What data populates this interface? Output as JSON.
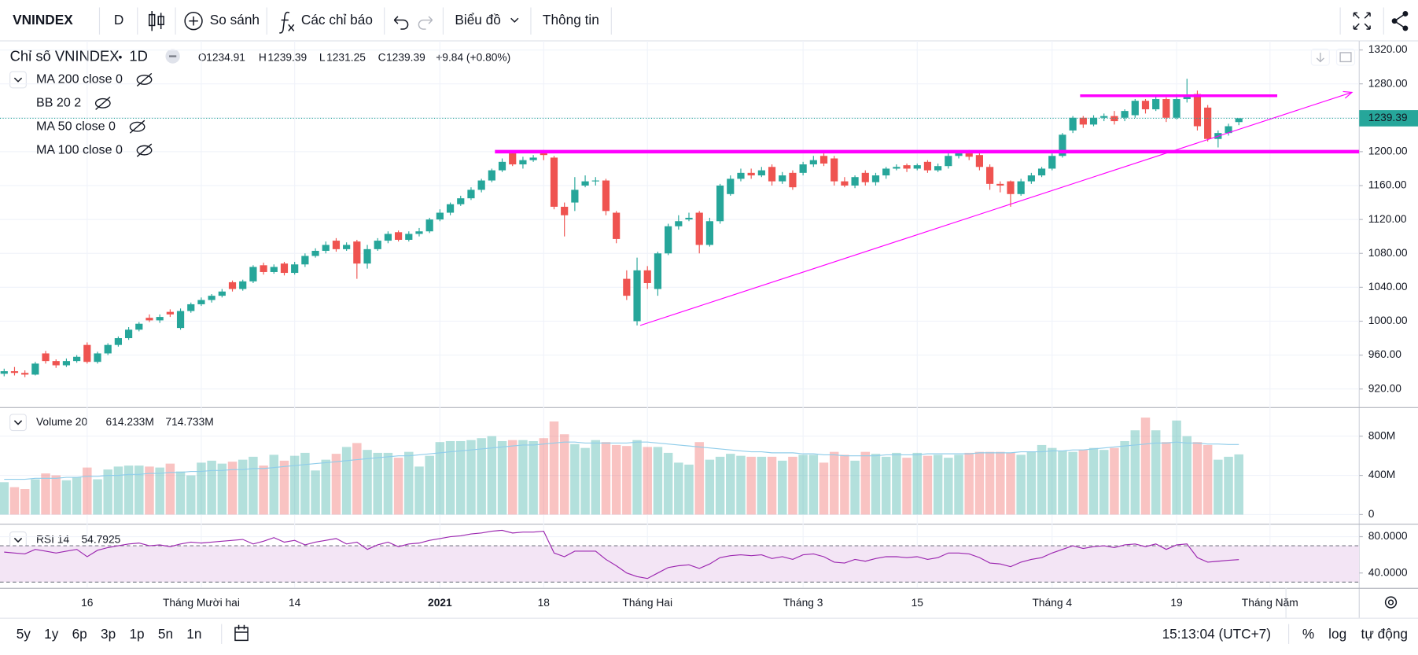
{
  "toolbar": {
    "symbol": "VNINDEX",
    "interval": "D",
    "compare": "So sánh",
    "indicators": "Các chỉ báo",
    "chart": "Biểu đồ",
    "info": "Thông tin"
  },
  "chart_data": {
    "type": "candlestick",
    "title": "Chỉ số VNINDEX",
    "interval": "1D",
    "legend_labels": [
      "O",
      "H",
      "L",
      "C"
    ],
    "change": "+9.84 (+0.80%)",
    "indicators": [
      "MA 200 close 0",
      "BB 20 2",
      "MA 50 close 0",
      "MA 100 close 0"
    ],
    "categories": [
      null,
      null,
      null,
      null,
      null,
      null,
      null,
      null,
      "16",
      null,
      null,
      null,
      null,
      null,
      null,
      null,
      null,
      null,
      null,
      "Tháng Mười hai",
      null,
      null,
      null,
      null,
      null,
      null,
      null,
      null,
      "14",
      null,
      null,
      null,
      null,
      null,
      null,
      null,
      null,
      null,
      null,
      null,
      null,
      null,
      "2021",
      null,
      null,
      null,
      null,
      null,
      null,
      null,
      null,
      null,
      "18",
      null,
      null,
      null,
      null,
      null,
      null,
      null,
      null,
      null,
      "Tháng Hai",
      null,
      null,
      null,
      null,
      null,
      null,
      null,
      null,
      null,
      null,
      null,
      null,
      null,
      null,
      "Tháng 3",
      null,
      null,
      null,
      null,
      null,
      null,
      null,
      null,
      null,
      null,
      "15",
      null,
      null,
      null,
      null,
      null,
      null,
      null,
      null,
      null,
      null,
      null,
      null,
      "Tháng 4",
      null,
      null,
      null,
      null,
      null,
      null,
      null,
      null,
      null,
      null,
      null,
      "19",
      null,
      null,
      null,
      null,
      null,
      null,
      null,
      null,
      "Tháng Năm"
    ],
    "open": [
      938,
      941,
      939,
      937,
      962,
      953,
      948,
      953,
      972,
      952,
      962,
      972,
      980,
      990,
      1004,
      1001,
      1011,
      992,
      1012,
      1020,
      1025,
      1030,
      1046,
      1038,
      1047,
      1066,
      1058,
      1068,
      1057,
      1067,
      1077,
      1083,
      1095,
      1085,
      1094,
      1068,
      1085,
      1095,
      1105,
      1096,
      1103,
      1106,
      1120,
      1128,
      1138,
      1145,
      1155,
      1166,
      1178,
      1198,
      1185,
      1190,
      1198,
      1193,
      1135,
      1140,
      1160,
      1165,
      1166,
      1128,
      1050,
      1000,
      1060,
      1038,
      1080,
      1112,
      1120,
      1128,
      1090,
      1118,
      1150,
      1168,
      1175,
      1172,
      1182,
      1165,
      1175,
      1175,
      1185,
      1195,
      1192,
      1165,
      1160,
      1175,
      1164,
      1172,
      1180,
      1184,
      1180,
      1188,
      1178,
      1183,
      1195,
      1198,
      1196,
      1182,
      1162,
      1165,
      1150,
      1165,
      1172,
      1180,
      1195,
      1225,
      1240,
      1232,
      1240,
      1242,
      1240,
      1243,
      1260,
      1250,
      1262,
      1240,
      1262,
      1268,
      1252,
      1215,
      1222,
      1234.91,
      null,
      null,
      null
    ],
    "high": [
      944,
      946,
      942,
      952,
      965,
      955,
      956,
      960,
      975,
      964,
      974,
      982,
      993,
      999,
      1008,
      1008,
      1014,
      1015,
      1022,
      1028,
      1032,
      1038,
      1048,
      1049,
      1066,
      1069,
      1067,
      1070,
      1070,
      1080,
      1086,
      1094,
      1098,
      1093,
      1096,
      1090,
      1098,
      1106,
      1107,
      1106,
      1110,
      1122,
      1132,
      1140,
      1148,
      1158,
      1168,
      1180,
      1192,
      1200,
      1194,
      1196,
      1202,
      1195,
      1140,
      1170,
      1172,
      1170,
      1168,
      1130,
      1060,
      1075,
      1065,
      1082,
      1115,
      1125,
      1128,
      1130,
      1122,
      1162,
      1172,
      1180,
      1180,
      1182,
      1185,
      1176,
      1178,
      1188,
      1195,
      1198,
      1195,
      1170,
      1172,
      1178,
      1175,
      1182,
      1185,
      1186,
      1186,
      1190,
      1186,
      1198,
      1200,
      1202,
      1199,
      1185,
      1165,
      1166,
      1168,
      1175,
      1182,
      1198,
      1222,
      1242,
      1242,
      1243,
      1245,
      1248,
      1250,
      1262,
      1262,
      1265,
      1264,
      1268,
      1286,
      1272,
      1255,
      1225,
      1233,
      1239.39,
      null,
      null,
      null
    ],
    "low": [
      935,
      936,
      934,
      936,
      950,
      945,
      946,
      951,
      950,
      950,
      960,
      970,
      978,
      988,
      999,
      998,
      1005,
      990,
      1010,
      1018,
      1022,
      1028,
      1035,
      1036,
      1045,
      1055,
      1056,
      1054,
      1055,
      1064,
      1075,
      1080,
      1082,
      1083,
      1050,
      1062,
      1083,
      1092,
      1094,
      1094,
      1100,
      1104,
      1118,
      1125,
      1136,
      1143,
      1152,
      1164,
      1176,
      1183,
      1180,
      1188,
      1190,
      1132,
      1100,
      1130,
      1158,
      1160,
      1125,
      1092,
      1025,
      995,
      1038,
      1030,
      1078,
      1108,
      1118,
      1080,
      1088,
      1115,
      1148,
      1165,
      1168,
      1170,
      1160,
      1162,
      1155,
      1172,
      1182,
      1183,
      1160,
      1158,
      1157,
      1160,
      1160,
      1168,
      1178,
      1176,
      1178,
      1175,
      1176,
      1180,
      1192,
      1190,
      1178,
      1155,
      1152,
      1135,
      1148,
      1162,
      1170,
      1178,
      1193,
      1222,
      1228,
      1230,
      1236,
      1232,
      1236,
      1240,
      1245,
      1248,
      1235,
      1238,
      1258,
      1225,
      1212,
      1205,
      1219,
      1231.25,
      null,
      null,
      null
    ],
    "close": [
      941,
      939,
      937,
      950,
      953,
      948,
      953,
      958,
      952,
      962,
      972,
      980,
      990,
      997,
      1001,
      1005,
      1008,
      1012,
      1020,
      1025,
      1030,
      1035,
      1038,
      1047,
      1064,
      1058,
      1064,
      1057,
      1067,
      1077,
      1083,
      1090,
      1085,
      1090,
      1068,
      1085,
      1095,
      1103,
      1096,
      1103,
      1106,
      1120,
      1128,
      1138,
      1145,
      1155,
      1166,
      1178,
      1188,
      1185,
      1190,
      1193,
      1196,
      1135,
      1125,
      1155,
      1165,
      1166,
      1130,
      1097,
      1030,
      1060,
      1045,
      1080,
      1112,
      1118,
      1122,
      1090,
      1118,
      1160,
      1168,
      1175,
      1172,
      1178,
      1165,
      1172,
      1158,
      1185,
      1190,
      1186,
      1165,
      1160,
      1170,
      1164,
      1172,
      1180,
      1182,
      1180,
      1184,
      1178,
      1183,
      1195,
      1198,
      1194,
      1182,
      1162,
      1160,
      1150,
      1165,
      1172,
      1180,
      1195,
      1220,
      1240,
      1232,
      1240,
      1242,
      1236,
      1248,
      1260,
      1250,
      1262,
      1240,
      1262,
      1265,
      1230,
      1215,
      1222,
      1230,
      1239.39,
      null,
      null,
      null
    ],
    "up_color": "#26a69a",
    "down_color": "#ef5350",
    "xlim": [
      -0.4,
      130.6
    ],
    "ylim": [
      898.7,
      1330.7
    ],
    "yticks": [
      {
        "value": 920,
        "label": "920.00"
      },
      {
        "value": 960,
        "label": "960.00"
      },
      {
        "value": 1000,
        "label": "1000.00"
      },
      {
        "value": 1040,
        "label": "1040.00"
      },
      {
        "value": 1080,
        "label": "1080.00"
      },
      {
        "value": 1120,
        "label": "1120.00"
      },
      {
        "value": 1160,
        "label": "1160.00"
      },
      {
        "value": 1200,
        "label": "1200.00"
      },
      {
        "value": 1240,
        "label": "1240.00"
      },
      {
        "value": 1280,
        "label": "1280.00"
      },
      {
        "value": 1320,
        "label": "1320.00"
      }
    ],
    "grid": true,
    "annotations": [
      {
        "start": [
          47.3,
          1200
        ],
        "end": [
          130.6,
          1200
        ],
        "color": "#ff00ff",
        "width": 4,
        "arrow": false
      },
      {
        "start": [
          103.7,
          1266
        ],
        "end": [
          122.7,
          1266
        ],
        "color": "#ff00ff",
        "width": 3,
        "arrow": false
      },
      {
        "start": [
          61.3,
          995
        ],
        "end": [
          129.9,
          1270
        ],
        "color": "#ff00ff",
        "width": 1,
        "arrow": true
      }
    ],
    "volume": {
      "title": "Volume 20",
      "legend": [
        "614.233M",
        "714.733M"
      ],
      "values": [
        330000000.0,
        280000000.0,
        260000000.0,
        360000000.0,
        420000000.0,
        400000000.0,
        350000000.0,
        380000000.0,
        480000000.0,
        360000000.0,
        460000000.0,
        490000000.0,
        500000000.0,
        500000000.0,
        490000000.0,
        480000000.0,
        520000000.0,
        440000000.0,
        400000000.0,
        530000000.0,
        550000000.0,
        520000000.0,
        540000000.0,
        560000000.0,
        590000000.0,
        500000000.0,
        610000000.0,
        550000000.0,
        600000000.0,
        630000000.0,
        450000000.0,
        560000000.0,
        620000000.0,
        690000000.0,
        730000000.0,
        660000000.0,
        630000000.0,
        630000000.0,
        580000000.0,
        640000000.0,
        490000000.0,
        600000000.0,
        740000000.0,
        750000000.0,
        750000000.0,
        760000000.0,
        780000000.0,
        800000000.0,
        750000000.0,
        760000000.0,
        760000000.0,
        750000000.0,
        780000000.0,
        950000000.0,
        820000000.0,
        720000000.0,
        680000000.0,
        760000000.0,
        740000000.0,
        710000000.0,
        700000000.0,
        760000000.0,
        690000000.0,
        690000000.0,
        630000000.0,
        530000000.0,
        510000000.0,
        740000000.0,
        560000000.0,
        590000000.0,
        620000000.0,
        600000000.0,
        590000000.0,
        590000000.0,
        590000000.0,
        550000000.0,
        590000000.0,
        610000000.0,
        610000000.0,
        530000000.0,
        640000000.0,
        610000000.0,
        550000000.0,
        640000000.0,
        620000000.0,
        590000000.0,
        630000000.0,
        580000000.0,
        630000000.0,
        600000000.0,
        610000000.0,
        580000000.0,
        610000000.0,
        630000000.0,
        640000000.0,
        640000000.0,
        640000000.0,
        630000000.0,
        610000000.0,
        640000000.0,
        710000000.0,
        680000000.0,
        650000000.0,
        640000000.0,
        660000000.0,
        680000000.0,
        660000000.0,
        680000000.0,
        750000000.0,
        860000000.0,
        990000000.0,
        860000000.0,
        740000000.0,
        960000000.0,
        800000000.0,
        740000000.0,
        710000000.0,
        560000000.0,
        590000000.0,
        614233000,
        null,
        null,
        null
      ],
      "ma": [
        360000000.0,
        360000000.0,
        360000000.0,
        370000000.0,
        370000000.0,
        370000000.0,
        380000000.0,
        380000000.0,
        390000000.0,
        390000000.0,
        400000000.0,
        400000000.0,
        410000000.0,
        410000000.0,
        420000000.0,
        420000000.0,
        430000000.0,
        430000000.0,
        440000000.0,
        440000000.0,
        450000000.0,
        450000000.0,
        460000000.0,
        460000000.0,
        470000000.0,
        470000000.0,
        480000000.0,
        490000000.0,
        500000000.0,
        510000000.0,
        520000000.0,
        530000000.0,
        540000000.0,
        550000000.0,
        560000000.0,
        570000000.0,
        580000000.0,
        590000000.0,
        600000000.0,
        600000000.0,
        610000000.0,
        620000000.0,
        630000000.0,
        640000000.0,
        650000000.0,
        660000000.0,
        670000000.0,
        680000000.0,
        690000000.0,
        700000000.0,
        710000000.0,
        710000000.0,
        720000000.0,
        730000000.0,
        740000000.0,
        740000000.0,
        730000000.0,
        730000000.0,
        730000000.0,
        730000000.0,
        730000000.0,
        740000000.0,
        740000000.0,
        730000000.0,
        720000000.0,
        710000000.0,
        700000000.0,
        690000000.0,
        680000000.0,
        670000000.0,
        660000000.0,
        650000000.0,
        640000000.0,
        640000000.0,
        630000000.0,
        630000000.0,
        630000000.0,
        620000000.0,
        620000000.0,
        610000000.0,
        610000000.0,
        600000000.0,
        600000000.0,
        600000000.0,
        600000000.0,
        610000000.0,
        610000000.0,
        610000000.0,
        610000000.0,
        620000000.0,
        620000000.0,
        620000000.0,
        620000000.0,
        620000000.0,
        630000000.0,
        630000000.0,
        630000000.0,
        630000000.0,
        640000000.0,
        640000000.0,
        640000000.0,
        650000000.0,
        650000000.0,
        660000000.0,
        660000000.0,
        670000000.0,
        680000000.0,
        690000000.0,
        700000000.0,
        710000000.0,
        720000000.0,
        730000000.0,
        730000000.0,
        740000000.0,
        730000000.0,
        730000000.0,
        720000000.0,
        720000000.0,
        715000000.0,
        714733000,
        null,
        null,
        null
      ],
      "ma_color": "#90cdea",
      "ylim": [
        -84000000,
        1088000000
      ],
      "yticks": [
        0,
        {
          "value": 400000000,
          "label": "400M"
        },
        {
          "value": 800000000,
          "label": "800M"
        }
      ]
    },
    "rsi": {
      "title": "RSI 14",
      "legend": "54.7925",
      "values": [
        63,
        62,
        61,
        66,
        64,
        62,
        64,
        66,
        58,
        65,
        68,
        70,
        72,
        73,
        70,
        71,
        69,
        72,
        74,
        73,
        74,
        75,
        76,
        77,
        72,
        75,
        79,
        74,
        76,
        71,
        74,
        76,
        78,
        72,
        74,
        66,
        71,
        74,
        69,
        72,
        73,
        76,
        78,
        80,
        81,
        83,
        84,
        86,
        87,
        84,
        85,
        85,
        86,
        62,
        58,
        64,
        64,
        64,
        55,
        48,
        40,
        36,
        34,
        40,
        46,
        48,
        49,
        45,
        50,
        57,
        59,
        60,
        59,
        60,
        56,
        58,
        55,
        60,
        61,
        58,
        52,
        51,
        55,
        53,
        56,
        58,
        58,
        57,
        58,
        55,
        57,
        62,
        62,
        61,
        57,
        51,
        50,
        47,
        52,
        55,
        57,
        62,
        66,
        70,
        67,
        69,
        70,
        68,
        71,
        72,
        69,
        72,
        66,
        71,
        72,
        57,
        52,
        53,
        54,
        54.7925,
        null,
        null,
        null
      ],
      "color": "#9c27b0",
      "band": [
        30,
        70
      ],
      "band_color": "#f3e5f5",
      "ylim": [
        23.6,
        93.3
      ],
      "yticks": [
        {
          "value": 40,
          "label": "40.0000"
        },
        {
          "value": 80,
          "label": "80.0000"
        }
      ]
    }
  },
  "footer": {
    "ranges": [
      "5y",
      "1y",
      "6p",
      "3p",
      "1p",
      "5n",
      "1n"
    ],
    "time": "15:13:04 (UTC+7)",
    "scale_buttons": [
      "%",
      "log",
      "tự động"
    ]
  }
}
